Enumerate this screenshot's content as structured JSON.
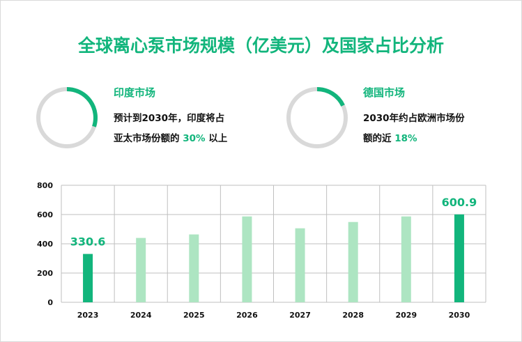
{
  "title": "全球离心泵市场规模（亿美元）及国家占比分析",
  "india": {
    "heading": "印度市场",
    "line1": "预计到2030年，印度将占",
    "line2_prefix": "亚太市场份额的 ",
    "highlight": "30%",
    "line2_suffix": " 以上",
    "share_percent": 30
  },
  "germany": {
    "heading": "德国市场",
    "line1": "2030年约占欧洲市场份",
    "line2_prefix": "额的近 ",
    "highlight": "18%",
    "share_percent": 18
  },
  "colors": {
    "accent": "#12b57c",
    "light_bar": "#ade5c2",
    "ring_bg": "#d9d9d9"
  },
  "chart_data": {
    "type": "bar",
    "categories": [
      "2023",
      "2024",
      "2025",
      "2026",
      "2027",
      "2028",
      "2029",
      "2030"
    ],
    "values": [
      330.6,
      440,
      464,
      587,
      506,
      549,
      587,
      600.9
    ],
    "highlighted": [
      "2023",
      "2030"
    ],
    "data_labels": {
      "2023": "330.6",
      "2030": "600.9"
    },
    "yticks": [
      "0",
      "200",
      "400",
      "600",
      "800"
    ],
    "ylim": [
      0,
      800
    ],
    "grid": true
  }
}
